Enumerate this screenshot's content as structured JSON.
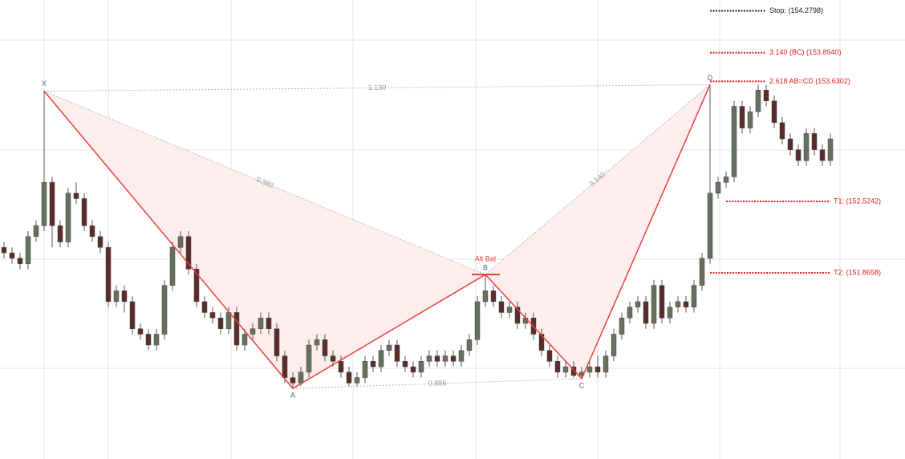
{
  "chart_data": {
    "type": "candlestick",
    "ylim": [
      150.15,
      154.38
    ],
    "up_color": "#66705c",
    "down_color": "#5c2b2b",
    "candles": [
      [
        152.1,
        152.15,
        152.0,
        152.05
      ],
      [
        152.05,
        152.1,
        151.95,
        152.0
      ],
      [
        152.0,
        152.05,
        151.9,
        151.95
      ],
      [
        151.95,
        152.25,
        151.9,
        152.2
      ],
      [
        152.2,
        152.35,
        152.15,
        152.3
      ],
      [
        152.3,
        153.54,
        152.25,
        152.7
      ],
      [
        152.7,
        152.75,
        152.1,
        152.3
      ],
      [
        152.3,
        152.35,
        152.1,
        152.15
      ],
      [
        152.15,
        152.65,
        152.1,
        152.6
      ],
      [
        152.6,
        152.7,
        152.5,
        152.55
      ],
      [
        152.55,
        152.6,
        152.25,
        152.3
      ],
      [
        152.3,
        152.35,
        152.15,
        152.2
      ],
      [
        152.2,
        152.25,
        152.05,
        152.1
      ],
      [
        152.1,
        152.15,
        151.55,
        151.6
      ],
      [
        151.6,
        151.75,
        151.55,
        151.7
      ],
      [
        151.7,
        151.75,
        151.5,
        151.6
      ],
      [
        151.6,
        151.65,
        151.3,
        151.35
      ],
      [
        151.35,
        151.4,
        151.25,
        151.3
      ],
      [
        151.3,
        151.35,
        151.15,
        151.2
      ],
      [
        151.2,
        151.35,
        151.15,
        151.3
      ],
      [
        151.3,
        151.8,
        151.25,
        151.75
      ],
      [
        151.75,
        152.15,
        151.7,
        152.1
      ],
      [
        152.1,
        152.25,
        152.05,
        152.2
      ],
      [
        152.2,
        152.25,
        151.85,
        151.9
      ],
      [
        151.9,
        151.95,
        151.55,
        151.6
      ],
      [
        151.6,
        151.65,
        151.45,
        151.5
      ],
      [
        151.5,
        151.55,
        151.4,
        151.45
      ],
      [
        151.45,
        151.5,
        151.3,
        151.35
      ],
      [
        151.35,
        151.55,
        151.3,
        151.5
      ],
      [
        151.5,
        151.55,
        151.15,
        151.2
      ],
      [
        151.2,
        151.35,
        151.15,
        151.3
      ],
      [
        151.3,
        151.4,
        151.25,
        151.35
      ],
      [
        151.35,
        151.5,
        151.3,
        151.45
      ],
      [
        151.45,
        151.5,
        151.3,
        151.35
      ],
      [
        151.35,
        151.4,
        151.05,
        151.1
      ],
      [
        151.1,
        151.15,
        150.85,
        150.9
      ],
      [
        150.9,
        150.95,
        150.8,
        150.85
      ],
      [
        150.85,
        151.0,
        150.82,
        150.95
      ],
      [
        150.95,
        151.25,
        150.9,
        151.2
      ],
      [
        151.2,
        151.3,
        151.15,
        151.25
      ],
      [
        151.25,
        151.3,
        151.05,
        151.1
      ],
      [
        151.1,
        151.15,
        151.0,
        151.05
      ],
      [
        151.05,
        151.1,
        150.9,
        150.95
      ],
      [
        150.95,
        151.0,
        150.82,
        150.85
      ],
      [
        150.85,
        150.95,
        150.82,
        150.9
      ],
      [
        150.9,
        151.1,
        150.85,
        151.05
      ],
      [
        151.05,
        151.1,
        150.95,
        151.0
      ],
      [
        151.0,
        151.2,
        150.95,
        151.15
      ],
      [
        151.15,
        151.25,
        151.1,
        151.2
      ],
      [
        151.2,
        151.25,
        151.0,
        151.05
      ],
      [
        151.05,
        151.1,
        150.95,
        151.0
      ],
      [
        151.0,
        151.05,
        150.9,
        150.95
      ],
      [
        150.95,
        151.1,
        150.9,
        151.05
      ],
      [
        151.05,
        151.15,
        151.0,
        151.1
      ],
      [
        151.1,
        151.15,
        151.0,
        151.05
      ],
      [
        151.05,
        151.15,
        151.0,
        151.1
      ],
      [
        151.1,
        151.15,
        151.0,
        151.05
      ],
      [
        151.05,
        151.2,
        151.0,
        151.15
      ],
      [
        151.15,
        151.3,
        151.1,
        151.25
      ],
      [
        151.25,
        151.65,
        151.2,
        151.6
      ],
      [
        151.6,
        151.85,
        151.55,
        151.7
      ],
      [
        151.7,
        151.75,
        151.55,
        151.6
      ],
      [
        151.6,
        151.65,
        151.45,
        151.5
      ],
      [
        151.5,
        151.6,
        151.45,
        151.55
      ],
      [
        151.55,
        151.6,
        151.35,
        151.4
      ],
      [
        151.4,
        151.5,
        151.35,
        151.45
      ],
      [
        151.45,
        151.5,
        151.25,
        151.3
      ],
      [
        151.3,
        151.35,
        151.1,
        151.15
      ],
      [
        151.15,
        151.2,
        151.0,
        151.05
      ],
      [
        151.05,
        151.1,
        150.9,
        150.95
      ],
      [
        150.95,
        151.05,
        150.9,
        151.0
      ],
      [
        151.0,
        151.05,
        150.9,
        150.92
      ],
      [
        150.92,
        151.0,
        150.89,
        150.95
      ],
      [
        150.95,
        151.05,
        150.9,
        151.0
      ],
      [
        151.0,
        151.1,
        150.9,
        150.95
      ],
      [
        150.95,
        151.15,
        150.9,
        151.1
      ],
      [
        151.1,
        151.35,
        151.05,
        151.3
      ],
      [
        151.3,
        151.5,
        151.25,
        151.45
      ],
      [
        151.45,
        151.6,
        151.4,
        151.55
      ],
      [
        151.55,
        151.65,
        151.5,
        151.6
      ],
      [
        151.6,
        151.65,
        151.35,
        151.4
      ],
      [
        151.4,
        151.8,
        151.35,
        151.75
      ],
      [
        151.75,
        151.8,
        151.4,
        151.45
      ],
      [
        151.45,
        151.6,
        151.4,
        151.55
      ],
      [
        151.55,
        151.65,
        151.5,
        151.6
      ],
      [
        151.6,
        151.65,
        151.5,
        151.55
      ],
      [
        151.55,
        151.8,
        151.5,
        151.75
      ],
      [
        151.75,
        152.05,
        151.7,
        152.0
      ],
      [
        152.0,
        153.6,
        151.95,
        152.6
      ],
      [
        152.6,
        152.75,
        152.55,
        152.7
      ],
      [
        152.7,
        152.8,
        152.65,
        152.75
      ],
      [
        152.75,
        153.45,
        152.7,
        153.4
      ],
      [
        153.4,
        153.45,
        153.15,
        153.2
      ],
      [
        153.2,
        153.4,
        153.15,
        153.35
      ],
      [
        153.35,
        153.6,
        153.3,
        153.55
      ],
      [
        153.55,
        153.6,
        153.4,
        153.45
      ],
      [
        153.45,
        153.5,
        153.2,
        153.25
      ],
      [
        153.25,
        153.3,
        153.05,
        153.1
      ],
      [
        153.1,
        153.15,
        152.95,
        153.0
      ],
      [
        153.0,
        153.05,
        152.85,
        152.9
      ],
      [
        152.9,
        153.2,
        152.85,
        153.15
      ],
      [
        153.15,
        153.2,
        152.95,
        153.0
      ],
      [
        153.0,
        153.05,
        152.85,
        152.9
      ],
      [
        152.9,
        153.15,
        152.85,
        153.1
      ]
    ],
    "pattern": {
      "name": "Alt Bat",
      "color": "#e8413e",
      "points": [
        {
          "label": "X",
          "index": 5,
          "price": 153.54
        },
        {
          "label": "A",
          "index": 36,
          "price": 150.8
        },
        {
          "label": "B",
          "index": 60,
          "price": 151.85
        },
        {
          "label": "C",
          "index": 72,
          "price": 150.89
        },
        {
          "label": "D",
          "index": 88,
          "price": 153.6
        }
      ],
      "ratios": [
        {
          "value": 1.13,
          "label": "1.130"
        },
        {
          "value": 0.382,
          "label": "0.382"
        },
        {
          "value": 3.14,
          "label": "3.140"
        },
        {
          "value": 0.886,
          "label": "0.886"
        }
      ]
    },
    "levels": [
      {
        "label": "Stop: (154.2798)",
        "price": 154.2798,
        "color": "#222222"
      },
      {
        "label": "3.140 (BC) (153.8940)",
        "price": 153.894,
        "color": "#e02020"
      },
      {
        "label": "2.618 AB=CD (153.6302)",
        "price": 153.6302,
        "color": "#e02020"
      },
      {
        "label": "T1: (152.5242)",
        "price": 152.5242,
        "color": "#e02020"
      },
      {
        "label": "T2: (151.8658)",
        "price": 151.8658,
        "color": "#e02020"
      }
    ]
  }
}
